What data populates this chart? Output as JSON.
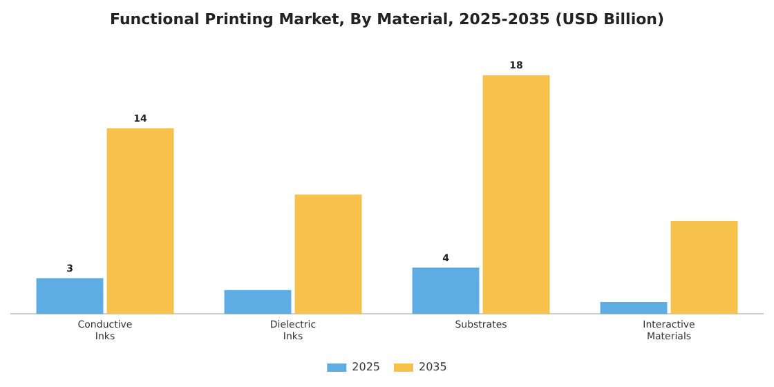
{
  "chart_data": {
    "type": "bar",
    "title": "Functional Printing Market, By Material, 2025-2035 (USD Billion)",
    "categories": [
      "Conductive Inks",
      "Dielectric Inks",
      "Substrates",
      "Interactive Materials"
    ],
    "series": [
      {
        "name": "2025",
        "color": "#5dade2",
        "values": [
          2.7,
          1.8,
          3.5,
          0.9
        ],
        "value_labels": [
          "3",
          null,
          "4",
          null
        ]
      },
      {
        "name": "2035",
        "color": "#f7c24c",
        "values": [
          14,
          9,
          18,
          7
        ],
        "value_labels": [
          "14",
          null,
          "18",
          null
        ]
      }
    ],
    "legend": "bottom",
    "grid": false
  }
}
